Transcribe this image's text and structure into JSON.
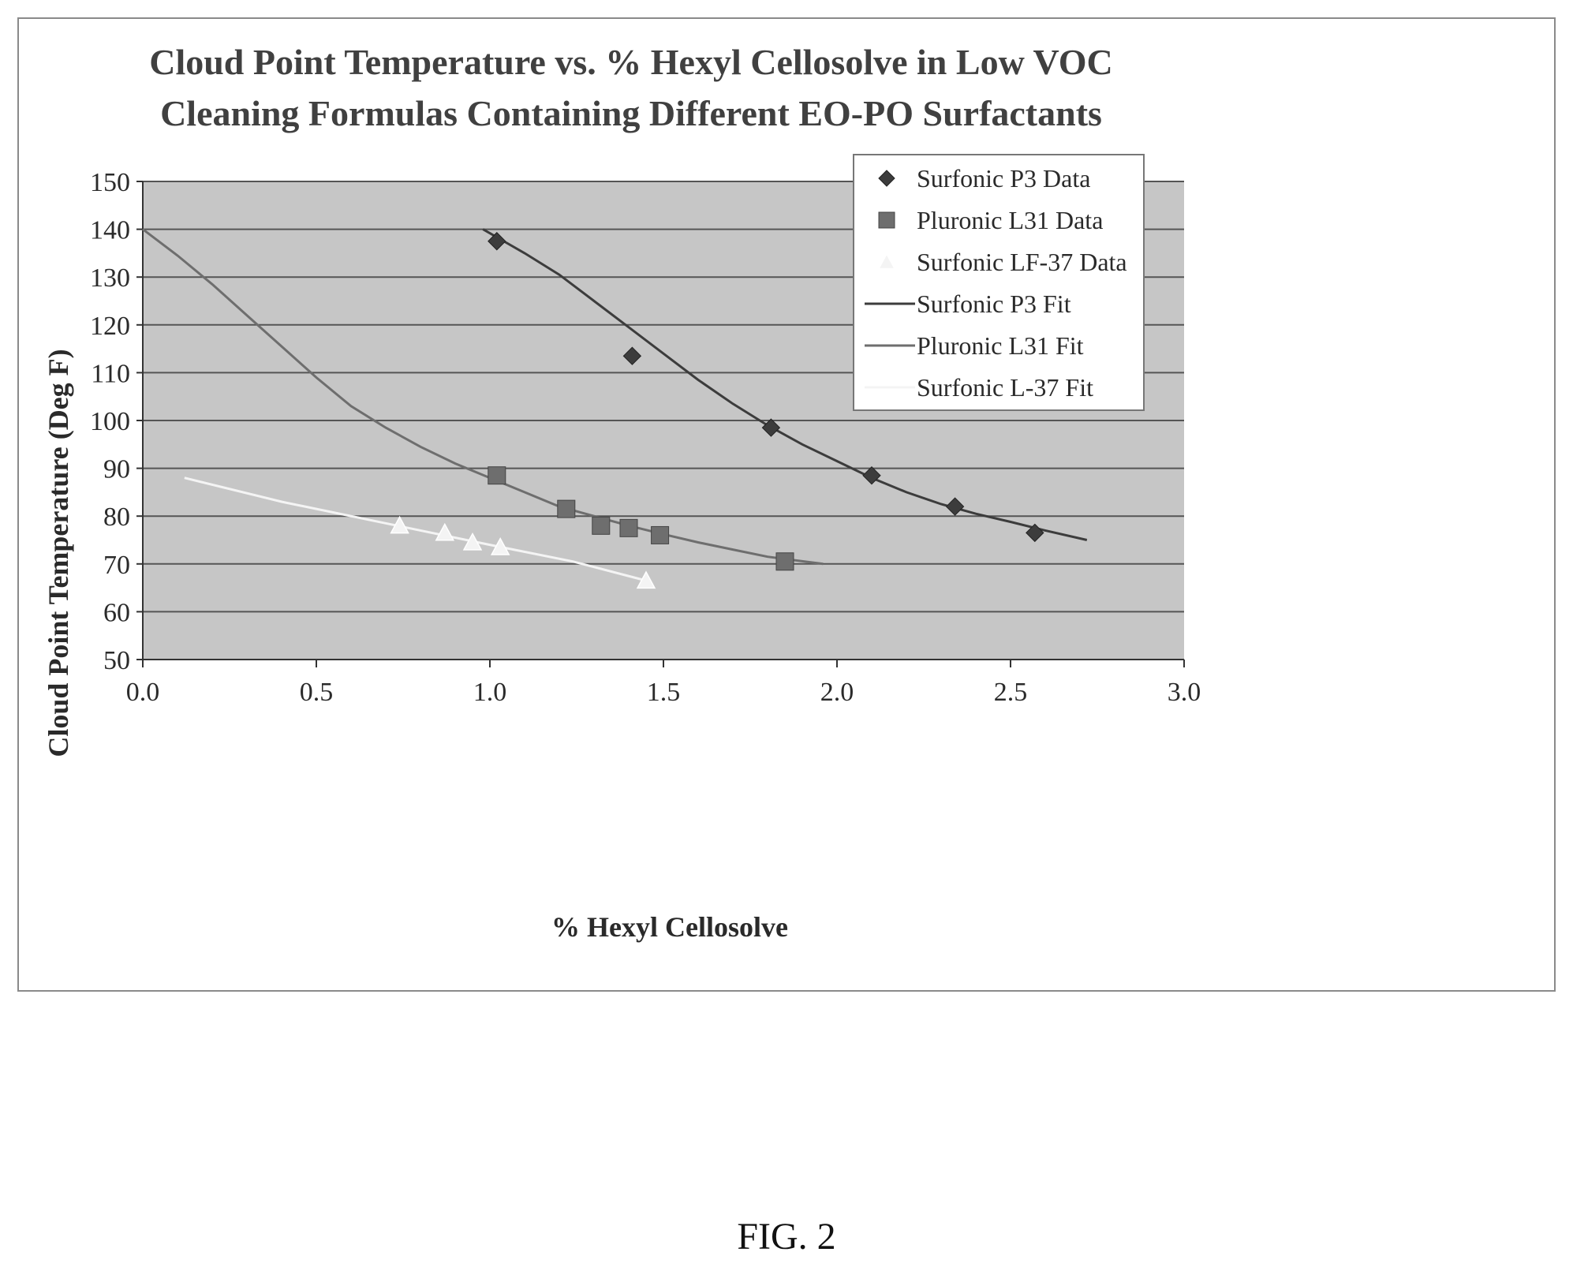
{
  "figure": {
    "caption": "FIG. 2"
  },
  "colors": {
    "plot_bg": "#c6c6c6",
    "grid": "#555555",
    "p3": "#3c3c3c",
    "l31": "#6e6e6e",
    "lf37": "#f4f4f4",
    "text": "#2a2a2a"
  },
  "chart_data": {
    "type": "scatter",
    "title_lines": [
      "Cloud Point Temperature vs. % Hexyl Cellosolve in Low VOC",
      "Cleaning Formulas Containing Different EO-PO Surfactants"
    ],
    "xlabel": "% Hexyl Cellosolve",
    "ylabel": "Cloud Point Temperature (Deg F)",
    "xlim": [
      0.0,
      3.0
    ],
    "ylim": [
      50,
      150
    ],
    "xticks": [
      "0.0",
      "0.5",
      "1.0",
      "1.5",
      "2.0",
      "2.5",
      "3.0"
    ],
    "xtick_values": [
      0.0,
      0.5,
      1.0,
      1.5,
      2.0,
      2.5,
      3.0
    ],
    "yticks": [
      "50",
      "60",
      "70",
      "80",
      "90",
      "100",
      "110",
      "120",
      "130",
      "140",
      "150"
    ],
    "ytick_values": [
      50,
      60,
      70,
      80,
      90,
      100,
      110,
      120,
      130,
      140,
      150
    ],
    "grid": "horizontal",
    "legend_position": "top-right",
    "legend": [
      "Surfonic P3 Data",
      "Pluronic L31 Data",
      "Surfonic LF-37 Data",
      "Surfonic P3 Fit",
      "Pluronic L31  Fit",
      "Surfonic L-37 Fit"
    ],
    "series": [
      {
        "name": "Surfonic P3 Data",
        "kind": "points",
        "marker": "diamond",
        "color_key": "p3",
        "x": [
          1.02,
          1.41,
          1.81,
          2.1,
          2.34,
          2.57
        ],
        "y": [
          137.5,
          113.5,
          98.5,
          88.5,
          82.0,
          76.5
        ]
      },
      {
        "name": "Pluronic L31 Data",
        "kind": "points",
        "marker": "square",
        "color_key": "l31",
        "x": [
          1.02,
          1.22,
          1.32,
          1.4,
          1.49,
          1.85
        ],
        "y": [
          88.5,
          81.5,
          78.0,
          77.5,
          76.0,
          70.5
        ]
      },
      {
        "name": "Surfonic LF-37 Data",
        "kind": "points",
        "marker": "triangle",
        "color_key": "lf37",
        "x": [
          0.74,
          0.87,
          0.95,
          1.03,
          1.45
        ],
        "y": [
          78.0,
          76.5,
          74.5,
          73.5,
          66.5
        ]
      },
      {
        "name": "Surfonic P3 Fit",
        "kind": "line",
        "color_key": "p3",
        "x": [
          0.98,
          1.1,
          1.2,
          1.3,
          1.4,
          1.5,
          1.6,
          1.7,
          1.8,
          1.9,
          2.0,
          2.1,
          2.2,
          2.3,
          2.4,
          2.5,
          2.6,
          2.72
        ],
        "y": [
          140,
          135,
          130.5,
          125,
          119.5,
          114,
          108.5,
          103.5,
          99,
          95,
          91.5,
          88,
          85,
          82.5,
          80.5,
          78.8,
          77,
          75
        ]
      },
      {
        "name": "Pluronic L31  Fit",
        "kind": "line",
        "color_key": "l31",
        "x": [
          0.0,
          0.1,
          0.2,
          0.3,
          0.4,
          0.5,
          0.6,
          0.7,
          0.8,
          0.9,
          1.0,
          1.1,
          1.2,
          1.3,
          1.4,
          1.5,
          1.6,
          1.7,
          1.8,
          1.96
        ],
        "y": [
          140,
          134.5,
          128.5,
          122,
          115.5,
          109,
          103,
          98.5,
          94.5,
          91,
          88,
          85,
          82,
          80,
          78,
          76.2,
          74.5,
          73,
          71.5,
          70
        ]
      },
      {
        "name": "Surfonic L-37 Fit",
        "kind": "line",
        "color_key": "lf37",
        "x": [
          0.12,
          0.4,
          0.7,
          1.0,
          1.24,
          1.45
        ],
        "y": [
          88,
          83,
          78.5,
          74,
          70.5,
          66.5
        ]
      }
    ]
  }
}
